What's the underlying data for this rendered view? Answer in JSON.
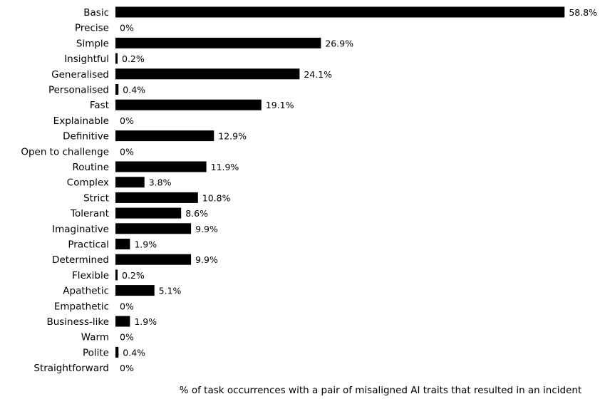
{
  "chart_data": {
    "type": "bar",
    "orientation": "horizontal",
    "xlabel": "% of task occurrences with a pair of misaligned AI traits that resulted in an incident",
    "ylabel": "",
    "title": "",
    "xlim": [
      0,
      60
    ],
    "grid": false,
    "bar_color": "#000000",
    "value_suffix": "%",
    "categories": [
      "Basic",
      "Precise",
      "Simple",
      "Insightful",
      "Generalised",
      "Personalised",
      "Fast",
      "Explainable",
      "Definitive",
      "Open to challenge",
      "Routine",
      "Complex",
      "Strict",
      "Tolerant",
      "Imaginative",
      "Practical",
      "Determined",
      "Flexible",
      "Apathetic",
      "Empathetic",
      "Business-like",
      "Warm",
      "Polite",
      "Straightforward"
    ],
    "values": [
      58.8,
      0,
      26.9,
      0.2,
      24.1,
      0.4,
      19.1,
      0,
      12.9,
      0,
      11.9,
      3.8,
      10.8,
      8.6,
      9.9,
      1.9,
      9.9,
      0.2,
      5.1,
      0,
      1.9,
      0,
      0.4,
      0
    ],
    "value_labels": [
      "58.8%",
      "0%",
      "26.9%",
      "0.2%",
      "24.1%",
      "0.4%",
      "19.1%",
      "0%",
      "12.9%",
      "0%",
      "11.9%",
      "3.8%",
      "10.8%",
      "8.6%",
      "9.9%",
      "1.9%",
      "9.9%",
      "0.2%",
      "5.1%",
      "0%",
      "1.9%",
      "0%",
      "0.4%",
      "0%"
    ]
  }
}
